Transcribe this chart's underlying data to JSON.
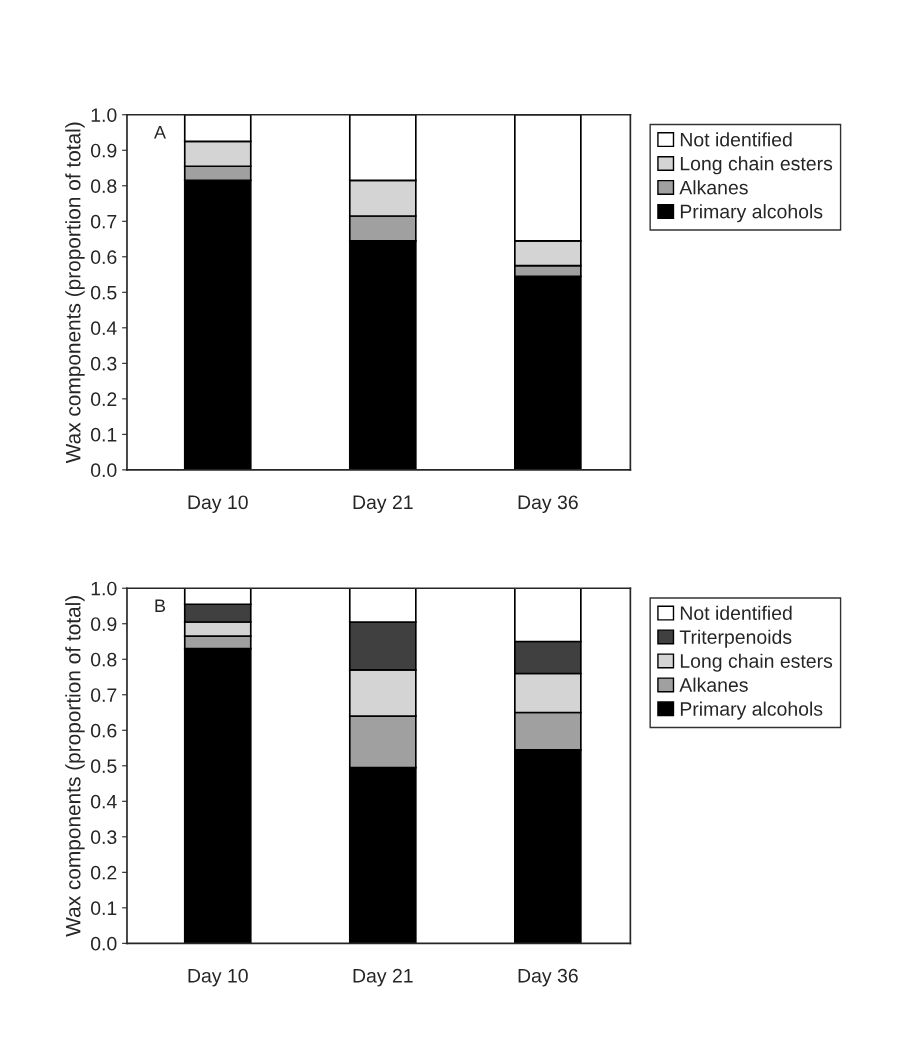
{
  "chart_data": [
    {
      "type": "bar",
      "stacked": true,
      "ylabel": "Wax components (proportion of total)",
      "annotations": [
        "A"
      ],
      "categories": [
        "Day 10",
        "Day 21",
        "Day 36"
      ],
      "ylim": [
        0,
        1.0
      ],
      "yticks": [
        {
          "value": 0,
          "label": "0.0"
        },
        {
          "value": 0.1,
          "label": "0.1"
        },
        {
          "value": 0.2,
          "label": "0.2"
        },
        {
          "value": 0.3,
          "label": "0.3"
        },
        {
          "value": 0.4,
          "label": "0.4"
        },
        {
          "value": 0.5,
          "label": "0.5"
        },
        {
          "value": 0.6,
          "label": "0.6"
        },
        {
          "value": 0.7,
          "label": "0.7"
        },
        {
          "value": 0.8,
          "label": "0.8"
        },
        {
          "value": 0.9,
          "label": "0.9"
        },
        {
          "value": 1.0,
          "label": "1.0"
        }
      ],
      "grid": false,
      "legend": "right",
      "series": [
        {
          "name": "Primary alcohols",
          "color": "#000000",
          "values": [
            0.815,
            0.645,
            0.545
          ]
        },
        {
          "name": "Alkanes",
          "color": "#a0a0a0",
          "values": [
            0.04,
            0.07,
            0.03
          ]
        },
        {
          "name": "Long chain esters",
          "color": "#d4d4d4",
          "values": [
            0.07,
            0.1,
            0.07
          ]
        },
        {
          "name": "Not identified",
          "color": "#ffffff",
          "values": [
            0.075,
            0.185,
            0.355
          ]
        }
      ]
    },
    {
      "type": "bar",
      "stacked": true,
      "ylabel": "Wax components (proportion of total)",
      "annotations": [
        "B"
      ],
      "categories": [
        "Day 10",
        "Day 21",
        "Day 36"
      ],
      "ylim": [
        0,
        1.0
      ],
      "yticks": [
        {
          "value": 0,
          "label": "0.0"
        },
        {
          "value": 0.1,
          "label": "0.1"
        },
        {
          "value": 0.2,
          "label": "0.2"
        },
        {
          "value": 0.3,
          "label": "0.3"
        },
        {
          "value": 0.4,
          "label": "0.4"
        },
        {
          "value": 0.5,
          "label": "0.5"
        },
        {
          "value": 0.6,
          "label": "0.6"
        },
        {
          "value": 0.7,
          "label": "0.7"
        },
        {
          "value": 0.8,
          "label": "0.8"
        },
        {
          "value": 0.9,
          "label": "0.9"
        },
        {
          "value": 1.0,
          "label": "1.0"
        }
      ],
      "grid": false,
      "legend": "right",
      "series": [
        {
          "name": "Primary alcohols",
          "color": "#000000",
          "values": [
            0.83,
            0.495,
            0.545
          ]
        },
        {
          "name": "Alkanes",
          "color": "#a0a0a0",
          "values": [
            0.035,
            0.145,
            0.105
          ]
        },
        {
          "name": "Long chain esters",
          "color": "#d4d4d4",
          "values": [
            0.04,
            0.13,
            0.11
          ]
        },
        {
          "name": "Triterpenoids",
          "color": "#404040",
          "values": [
            0.05,
            0.135,
            0.09
          ]
        },
        {
          "name": "Not identified",
          "color": "#ffffff",
          "values": [
            0.045,
            0.095,
            0.15
          ]
        }
      ]
    }
  ]
}
